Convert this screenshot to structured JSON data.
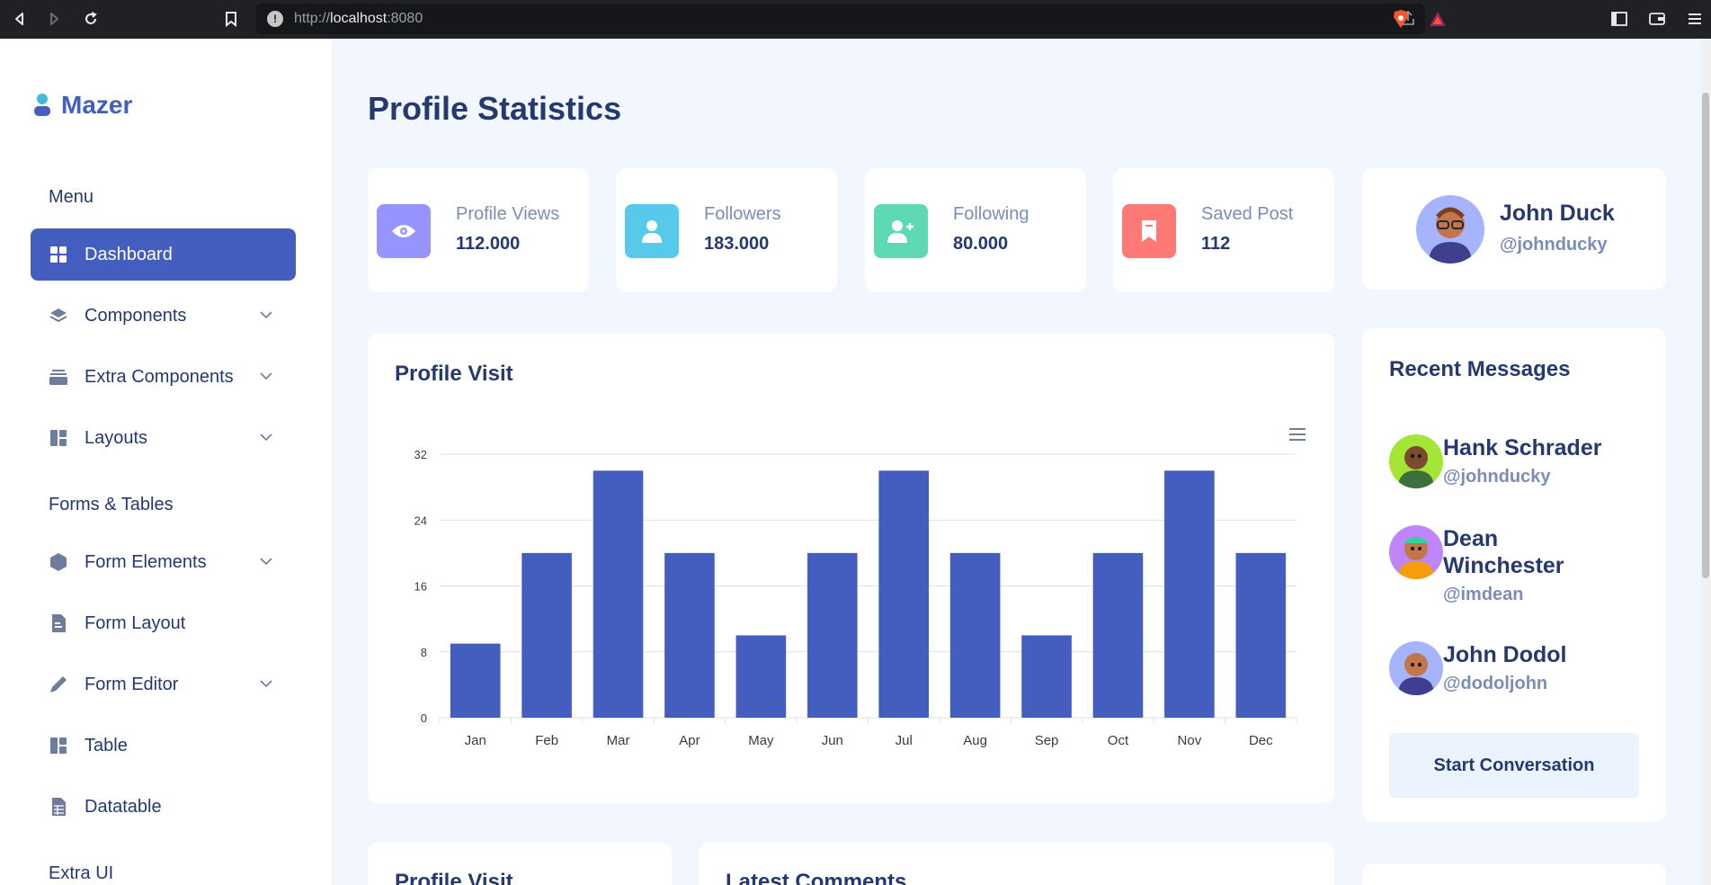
{
  "browser": {
    "url_scheme": "http://",
    "url_host": "localhost",
    "url_port": ":8080"
  },
  "sidebar": {
    "brand": "Mazer",
    "menu_title": "Menu",
    "items": [
      {
        "label": "Dashboard",
        "icon": "grid-icon",
        "active": true,
        "has_sub": false
      },
      {
        "label": "Components",
        "icon": "stack-icon",
        "active": false,
        "has_sub": true
      },
      {
        "label": "Extra Components",
        "icon": "collection-icon",
        "active": false,
        "has_sub": true
      },
      {
        "label": "Layouts",
        "icon": "layout-icon",
        "active": false,
        "has_sub": true
      }
    ],
    "forms_title": "Forms & Tables",
    "form_items": [
      {
        "label": "Form Elements",
        "icon": "hexagon-icon",
        "has_sub": true
      },
      {
        "label": "Form Layout",
        "icon": "file-text-icon",
        "has_sub": false
      },
      {
        "label": "Form Editor",
        "icon": "pen-icon",
        "has_sub": true
      },
      {
        "label": "Table",
        "icon": "layout-icon",
        "has_sub": false
      },
      {
        "label": "Datatable",
        "icon": "spreadsheet-icon",
        "has_sub": false
      }
    ],
    "extra_title": "Extra UI"
  },
  "main": {
    "title": "Profile Statistics",
    "stats": [
      {
        "label": "Profile Views",
        "value": "112.000",
        "icon": "eye-icon",
        "color": "#9694ff"
      },
      {
        "label": "Followers",
        "value": "183.000",
        "icon": "person-icon",
        "color": "#57caeb"
      },
      {
        "label": "Following",
        "value": "80.000",
        "icon": "person-plus-icon",
        "color": "#5ddab4"
      },
      {
        "label": "Saved Post",
        "value": "112",
        "icon": "bookmark-icon",
        "color": "#ff7976"
      }
    ],
    "profile": {
      "name": "John Duck",
      "handle": "@johnducky"
    },
    "chart_card_title": "Profile Visit",
    "bottom_left_title": "Profile Visit",
    "bottom_right_title": "Latest Comments"
  },
  "messages": {
    "title": "Recent Messages",
    "items": [
      {
        "name": "Hank Schrader",
        "handle": "@johnducky",
        "avatar_bg": "#a3e635"
      },
      {
        "name": "Dean Winchester",
        "handle": "@imdean",
        "avatar_bg": "#c084fc"
      },
      {
        "name": "John Dodol",
        "handle": "@dodoljohn",
        "avatar_bg": "#a5b4fc"
      }
    ],
    "button": "Start Conversation"
  },
  "chart_data": {
    "type": "bar",
    "title": "Profile Visit",
    "categories": [
      "Jan",
      "Feb",
      "Mar",
      "Apr",
      "May",
      "Jun",
      "Jul",
      "Aug",
      "Sep",
      "Oct",
      "Nov",
      "Dec"
    ],
    "values": [
      9,
      20,
      30,
      20,
      10,
      20,
      30,
      20,
      10,
      20,
      30,
      20
    ],
    "ylim": [
      0,
      32
    ],
    "yticks": [
      0,
      8,
      16,
      24,
      32
    ],
    "xlabel": "",
    "ylabel": "",
    "color": "#435ebe",
    "grid": true
  },
  "colors": {
    "accent": "#435ebe",
    "text": "#25396f",
    "muted": "#7c8db5",
    "background": "#f2f7ff"
  }
}
